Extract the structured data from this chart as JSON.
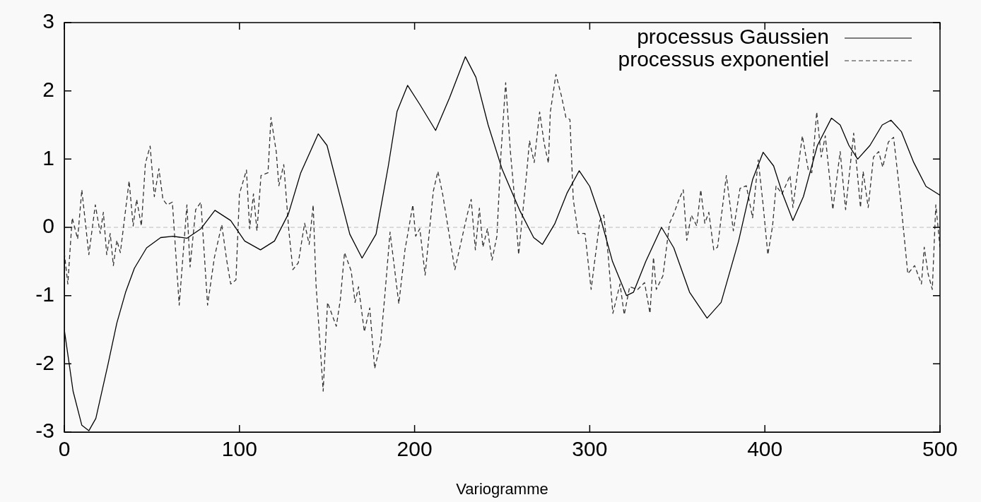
{
  "chart_data": {
    "type": "line",
    "xlabel": "Variogramme",
    "xlim": [
      0,
      500
    ],
    "xticks": [
      0,
      100,
      200,
      300,
      400,
      500
    ],
    "ylim": [
      -3,
      3
    ],
    "yticks": [
      -3,
      -2,
      -1,
      0,
      1,
      2,
      3
    ],
    "grid": false,
    "legend": "top right",
    "marker": "none",
    "ref_lines": [
      {
        "axis": "y",
        "value": 0,
        "color": "#bbbbbb",
        "line_style": "dashed"
      }
    ],
    "series": [
      {
        "name": "processus Gaussien",
        "color": "#000000",
        "line_style": "solid",
        "x": [
          0,
          5,
          10,
          14,
          18,
          25,
          30,
          35,
          40,
          47,
          55,
          62,
          70,
          78,
          86,
          95,
          103,
          112,
          120,
          128,
          135,
          145,
          150,
          158,
          163,
          170,
          178,
          185,
          190,
          196,
          203,
          212,
          220,
          229,
          235,
          242,
          250,
          260,
          268,
          273,
          280,
          287,
          294,
          300,
          306,
          313,
          321,
          325,
          332,
          341,
          348,
          357,
          367,
          375,
          385,
          393,
          399,
          405,
          410,
          416,
          422,
          430,
          438,
          443,
          448,
          453,
          460,
          467,
          472,
          478,
          485,
          492,
          500
        ],
        "values": [
          -1.5,
          -2.4,
          -2.9,
          -2.98,
          -2.8,
          -2.0,
          -1.4,
          -0.95,
          -0.6,
          -0.3,
          -0.15,
          -0.13,
          -0.16,
          -0.02,
          0.25,
          0.1,
          -0.2,
          -0.33,
          -0.2,
          0.2,
          0.8,
          1.37,
          1.2,
          0.4,
          -0.1,
          -0.45,
          -0.1,
          0.9,
          1.7,
          2.08,
          1.8,
          1.42,
          1.9,
          2.5,
          2.2,
          1.5,
          0.85,
          0.25,
          -0.15,
          -0.25,
          0.05,
          0.5,
          0.83,
          0.6,
          0.15,
          -0.5,
          -1.0,
          -0.95,
          -0.5,
          0,
          -0.3,
          -0.95,
          -1.33,
          -1.1,
          -0.2,
          0.7,
          1.1,
          0.9,
          0.5,
          0.1,
          0.45,
          1.2,
          1.6,
          1.5,
          1.2,
          1.0,
          1.2,
          1.5,
          1.57,
          1.4,
          0.95,
          0.6,
          0.47
        ]
      },
      {
        "name": "processus exponentiel",
        "color": "#333333",
        "line_style": "dashed",
        "x": [
          0,
          2,
          4.5,
          7.6,
          10,
          14,
          17.7,
          20.5,
          22.3,
          24.2,
          26.2,
          28,
          30,
          32,
          37,
          39.3,
          41.3,
          44,
          46.3,
          49,
          51.4,
          54,
          56.3,
          58.7,
          61.7,
          65.6,
          70,
          71.8,
          75,
          78,
          81.8,
          85.7,
          89.9,
          92.7,
          95,
          98,
          100,
          104,
          105.8,
          108,
          110,
          112.3,
          116.3,
          118,
          121,
          122.5,
          125.3,
          128.2,
          130.5,
          133.6,
          137.2,
          139.8,
          142.1,
          143.7,
          147.8,
          150.3,
          155.3,
          157.6,
          160,
          163.8,
          166,
          168,
          171.3,
          174.4,
          177.2,
          180.6,
          182.9,
          186,
          191,
          194.5,
          199,
          200.6,
          203,
          206,
          210.7,
          213.3,
          216,
          223,
          230,
          232.3,
          234.7,
          237,
          239,
          241.6,
          244.2,
          247,
          249.3,
          252,
          254.7,
          257,
          259.4,
          264,
          265.6,
          268.3,
          271.4,
          274,
          276.4,
          277.5,
          280.7,
          283.8,
          286.4,
          288.7,
          290.6,
          293.4,
          297.3,
          300.8,
          302.7,
          305.8,
          308,
          310.4,
          313.2,
          317.3,
          319.7,
          322.8,
          327.4,
          331.3,
          334.4,
          336.4,
          338,
          341.8,
          345.6,
          348,
          351,
          353.4,
          355.4,
          358,
          361.1,
          363.4,
          365.7,
          368,
          370.8,
          373,
          378,
          382,
          385.8,
          389.4,
          393,
          396.2,
          399,
          401.7,
          404.4,
          406.4,
          409.8,
          414.4,
          416,
          421.4,
          424.8,
          426.8,
          429.6,
          432.2,
          434.5,
          438.8,
          443,
          446.1,
          450.7,
          454.6,
          456.1,
          459,
          462,
          465,
          467.3,
          470.5,
          473.5,
          477.8,
          481.6,
          485.5,
          489.4,
          491,
          493.2,
          495.6,
          497.6,
          500
        ],
        "values": [
          -0.37,
          -0.83,
          0.14,
          -0.17,
          0.55,
          -0.4,
          0.33,
          -0.09,
          0.22,
          -0.4,
          -0.09,
          -0.56,
          -0.19,
          -0.37,
          0.68,
          0.02,
          0.41,
          0.02,
          0.94,
          1.19,
          0.45,
          0.86,
          0.41,
          0.33,
          0.37,
          -1.14,
          0.33,
          -0.58,
          0.26,
          0.37,
          -1.14,
          -0.44,
          0.04,
          -0.48,
          -0.83,
          -0.77,
          0.49,
          0.84,
          -0.02,
          0.49,
          -0.05,
          0.76,
          0.8,
          1.61,
          1.11,
          0.61,
          0.92,
          -0.05,
          -0.62,
          -0.52,
          0.06,
          -0.25,
          0.33,
          -0.83,
          -2.4,
          -1.1,
          -1.45,
          -1.06,
          -0.37,
          -0.64,
          -1.1,
          -0.87,
          -1.53,
          -1.18,
          -2.07,
          -1.69,
          -1.03,
          -0.07,
          -1.12,
          -0.33,
          0.33,
          -0.13,
          -0.02,
          -0.7,
          0.53,
          0.82,
          0.49,
          -0.62,
          0.18,
          0.41,
          -0.33,
          0.28,
          -0.29,
          -0.02,
          -0.48,
          -0.13,
          1.07,
          2.12,
          1.11,
          0.45,
          -0.4,
          0.8,
          1.27,
          0.95,
          1.69,
          1.23,
          0.94,
          1.69,
          2.24,
          1.93,
          1.61,
          1.58,
          0.41,
          -0.09,
          -0.09,
          -0.91,
          -0.52,
          0.1,
          0.18,
          -0.37,
          -1.26,
          -0.83,
          -1.28,
          -0.87,
          -0.91,
          -0.81,
          -1.26,
          -0.44,
          -0.91,
          -0.71,
          0.06,
          0.2,
          0.41,
          0.55,
          -0.19,
          0.18,
          0.02,
          0.55,
          0.06,
          0.22,
          -0.33,
          -0.29,
          0.76,
          -0.05,
          0.57,
          0.61,
          0.14,
          0.99,
          0.33,
          -0.4,
          0.02,
          0.61,
          0.49,
          0.76,
          0.29,
          1.34,
          0.84,
          0.8,
          1.69,
          1.03,
          1.34,
          0.26,
          1.11,
          0.26,
          1.38,
          0.29,
          0.82,
          0.29,
          1.03,
          1.11,
          0.88,
          1.25,
          1.32,
          0.33,
          -0.68,
          -0.56,
          -0.83,
          -0.29,
          -0.68,
          -0.91,
          0.33,
          -0.29
        ]
      }
    ]
  }
}
